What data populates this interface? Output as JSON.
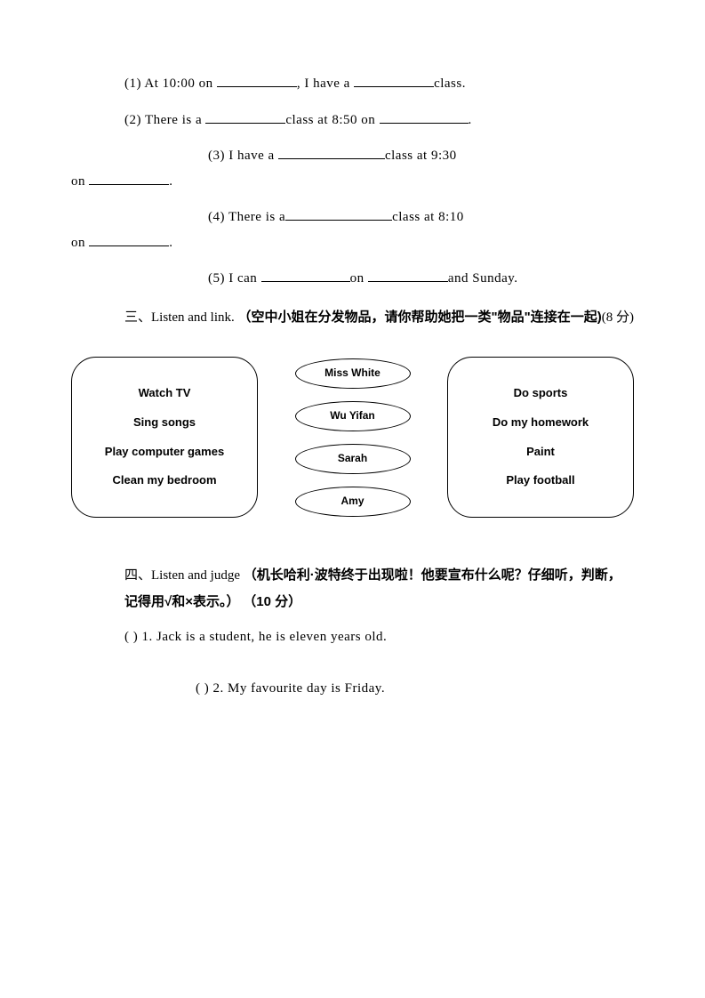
{
  "fill": {
    "q1_a": "(1) At 10:00 on ",
    "q1_b": ", I have a ",
    "q1_c": "class.",
    "q2_a": "(2) There is a ",
    "q2_b": "class at 8:50 on ",
    "q2_c": ".",
    "q3_a": "(3) I have a ",
    "q3_b": "class at 9:30",
    "q3_on": "on ",
    "q3_c": ".",
    "q4_a": "(4) There is a",
    "q4_b": "class at 8:10",
    "q4_on": "on ",
    "q4_c": ".",
    "q5_a": "(5) I can ",
    "q5_b": "on ",
    "q5_c": "and Sunday."
  },
  "section3": {
    "lead": "三、Listen and link.",
    "desc_a": "（空中小姐在分发物品，请你帮助她把一类\"物品\"连接在一起)",
    "points": "(8 分)"
  },
  "diagram": {
    "left": [
      "Watch TV",
      "Sing songs",
      "Play computer games",
      "Clean my bedroom"
    ],
    "mid": [
      "Miss White",
      "Wu Yifan",
      "Sarah",
      "Amy"
    ],
    "right": [
      "Do sports",
      "Do my homework",
      "Paint",
      "Play football"
    ]
  },
  "section4": {
    "lead": "四、Listen and judge ",
    "desc": "（机长哈利·波特终于出现啦！他要宣布什么呢？仔细听，判断，记得用√和×表示。）",
    "points": "（10 分）"
  },
  "judge": {
    "q1": "(     ) 1. Jack is a student, he is eleven years old.",
    "q2": "(    ) 2. My favourite day is Friday."
  }
}
